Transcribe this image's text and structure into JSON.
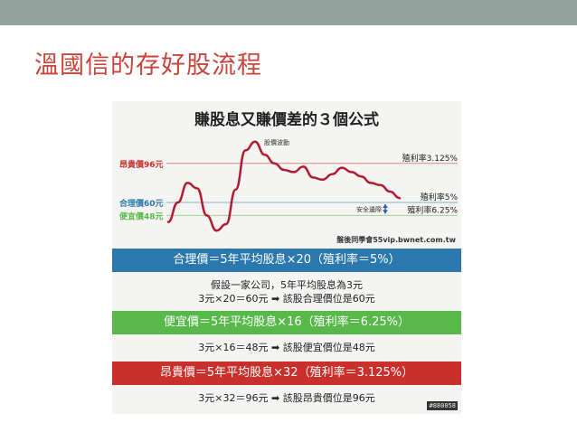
{
  "slide": {
    "title": "溫國信的存好股流程"
  },
  "panel": {
    "chart_title": "賺股息又賺價差的３個公式",
    "watermark": "#880058",
    "bands": {
      "fair": "合理價＝5年平均股息×20（殖利率＝5%）",
      "cheap": "便宜價＝5年平均股息×16（殖利率＝6.25%）",
      "expensive": "昂貴價＝5年平均股息×32（殖利率＝3.125%）"
    },
    "calc_fair_line1": "假設一家公司，5年平均股息為3元",
    "calc_fair_line2": "3元×20＝60元 ➡ 該股合理價位是60元",
    "calc_cheap": "3元×16＝48元 ➡ 該股便宜價位是48元",
    "calc_expensive": "3元×32＝96元 ➡ 該股昂貴價位是96元"
  },
  "chart_data": {
    "type": "line",
    "title": "賺股息又賺價差的３個公式",
    "reference_lines": [
      {
        "label_left": "昂貴價96元",
        "label_right": "殖利率3.125%",
        "value": 96,
        "color": "#c9302c"
      },
      {
        "label_left": "合理價60元",
        "label_right": "殖利率5%",
        "value": 60,
        "color": "#2a78ad"
      },
      {
        "label_left": "便宜價48元",
        "label_right": "殖利率6.25%",
        "value": 48,
        "color": "#58b94a"
      }
    ],
    "annotations": {
      "price_wave": "股價波動",
      "safety_margin": "安全邊際",
      "source": "盤後同學會55vip.bwnet.com.tw"
    },
    "series": [
      {
        "color": "#b31b32",
        "values": [
          42,
          60,
          78,
          73,
          48,
          34,
          40,
          72,
          108,
          116,
          104,
          96,
          90,
          88,
          93,
          83,
          81,
          86,
          92,
          88,
          84,
          78,
          76,
          70,
          64
        ]
      }
    ],
    "ylim": [
      30,
      120
    ]
  }
}
